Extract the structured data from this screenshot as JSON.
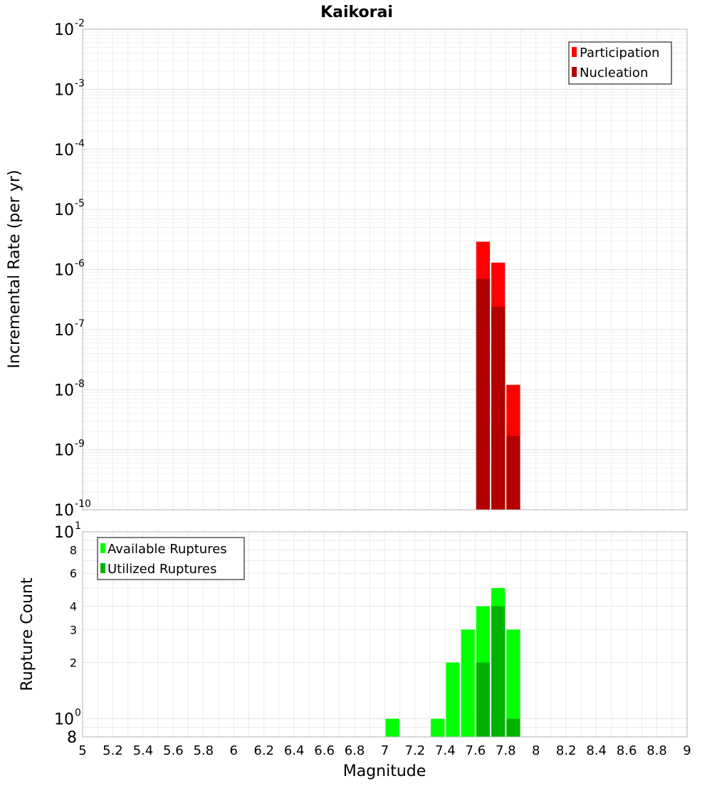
{
  "chart_data": [
    {
      "type": "bar",
      "title": "Kaikorai",
      "ylabel": "Incremental Rate (per yr)",
      "xlabel": "",
      "yscale": "log",
      "ylim": [
        1e-10,
        0.01
      ],
      "xlim": [
        5,
        9
      ],
      "grid": true,
      "legend": {
        "placement": "top-right",
        "entries": [
          "Participation",
          "Nucleation"
        ]
      },
      "bin_width": 0.1,
      "colors": {
        "Participation": "#ff0000",
        "Nucleation": "#b20000"
      },
      "y_ticks": [
        {
          "base": "10",
          "exp": "-10"
        },
        {
          "base": "10",
          "exp": "-9"
        },
        {
          "base": "10",
          "exp": "-8"
        },
        {
          "base": "10",
          "exp": "-7"
        },
        {
          "base": "10",
          "exp": "-6"
        },
        {
          "base": "10",
          "exp": "-5"
        },
        {
          "base": "10",
          "exp": "-4"
        },
        {
          "base": "10",
          "exp": "-3"
        },
        {
          "base": "10",
          "exp": "-2"
        }
      ],
      "series": [
        {
          "name": "Participation",
          "x": [
            7.65,
            7.75,
            7.85
          ],
          "values": [
            2.9e-06,
            1.3e-06,
            1.2e-08
          ]
        },
        {
          "name": "Nucleation",
          "x": [
            7.65,
            7.75,
            7.85
          ],
          "values": [
            7e-07,
            2.4e-07,
            1.7e-09
          ]
        }
      ]
    },
    {
      "type": "bar",
      "ylabel": "Rupture Count",
      "xlabel": "Magnitude",
      "yscale": "log",
      "ylim": [
        0.8,
        10
      ],
      "xlim": [
        5,
        9
      ],
      "grid": true,
      "legend": {
        "placement": "top-left",
        "entries": [
          "Available Ruptures",
          "Utilized Ruptures"
        ]
      },
      "bin_width": 0.1,
      "colors": {
        "Available Ruptures": "#00ff00",
        "Utilized Ruptures": "#00b200"
      },
      "y_major_ticks": [
        {
          "base": "10",
          "exp": "0",
          "value": 1
        },
        {
          "base": "10",
          "exp": "1",
          "value": 10
        }
      ],
      "y_minor_ticks": [
        {
          "label": "8",
          "value": 0.8
        },
        {
          "label": "2",
          "value": 2
        },
        {
          "label": "3",
          "value": 3
        },
        {
          "label": "4",
          "value": 4
        },
        {
          "label": "6",
          "value": 6
        },
        {
          "label": "8",
          "value": 8
        }
      ],
      "x_ticks": [
        "5",
        "5.2",
        "5.4",
        "5.6",
        "5.8",
        "6",
        "6.2",
        "6.4",
        "6.6",
        "6.8",
        "7",
        "7.2",
        "7.4",
        "7.6",
        "7.8",
        "8",
        "8.2",
        "8.4",
        "8.6",
        "8.8",
        "9"
      ],
      "series": [
        {
          "name": "Available Ruptures",
          "x": [
            7.05,
            7.35,
            7.45,
            7.55,
            7.65,
            7.75,
            7.85
          ],
          "values": [
            1,
            1,
            2,
            3,
            4,
            5,
            3
          ]
        },
        {
          "name": "Utilized Ruptures",
          "x": [
            7.65,
            7.75,
            7.85
          ],
          "values": [
            2,
            4,
            1
          ]
        }
      ]
    }
  ]
}
